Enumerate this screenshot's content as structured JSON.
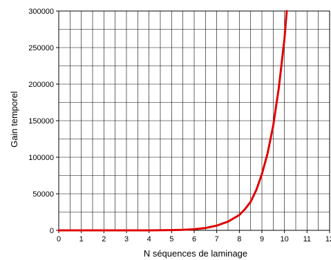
{
  "chart_data": {
    "type": "line",
    "title": "",
    "xlabel": "N séquences de laminage",
    "ylabel": "Gain temporel",
    "xlim": [
      0,
      12
    ],
    "ylim": [
      0,
      300000
    ],
    "x_ticks": [
      "0",
      "1",
      "2",
      "3",
      "4",
      "5",
      "6",
      "7",
      "8",
      "9",
      "10",
      "11",
      "12"
    ],
    "y_ticks": [
      "0",
      "50000",
      "100000",
      "150000",
      "200000",
      "250000",
      "300000"
    ],
    "grid": true,
    "series": [
      {
        "color": "#e00000",
        "x": [
          0,
          1,
          2,
          3,
          4,
          5,
          5.5,
          6,
          6.5,
          7,
          7.5,
          8,
          8.25,
          8.5,
          8.75,
          9,
          9.25,
          9.5,
          9.75,
          10,
          10.1
        ],
        "y": [
          0,
          0,
          0,
          0,
          0,
          300,
          700,
          1500,
          3200,
          6500,
          12000,
          21000,
          29000,
          39000,
          55000,
          77000,
          105000,
          143000,
          195000,
          262000,
          300000
        ]
      }
    ]
  }
}
